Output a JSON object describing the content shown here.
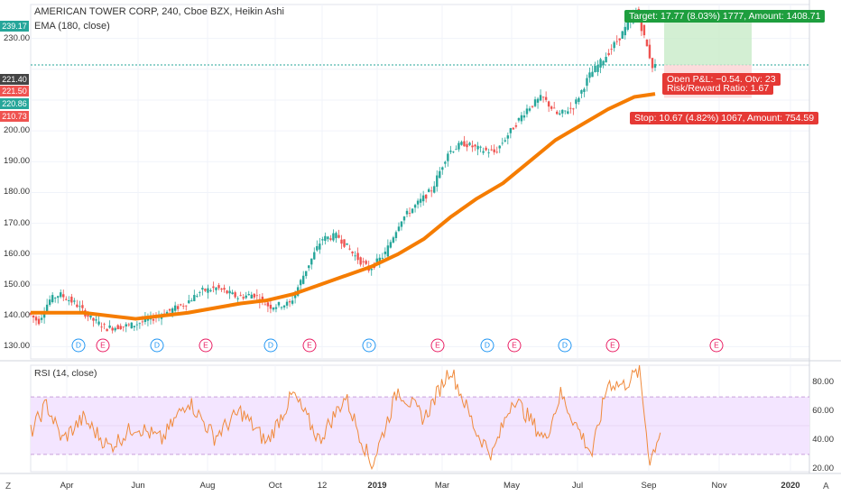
{
  "header": {
    "title": "AMERICAN TOWER CORP, 240, Cboe BZX, Heikin Ashi",
    "ema_label": "EMA (180, close)",
    "rsi_label": "RSI (14, close)"
  },
  "price_axis": {
    "labels": [
      "230.00",
      "200.00",
      "190.00",
      "180.00",
      "170.00",
      "160.00",
      "150.00",
      "140.00",
      "130.00"
    ],
    "tags": [
      {
        "text": "239.17",
        "color": "#26a69a"
      },
      {
        "text": "221.40",
        "color": "#444444"
      },
      {
        "text": "221.50",
        "color": "#ef5350"
      },
      {
        "text": "220.86",
        "color": "#26a69a"
      },
      {
        "text": "210.73",
        "color": "#ef5350"
      }
    ]
  },
  "rsi_axis": {
    "labels": [
      "80.00",
      "60.00",
      "40.00",
      "20.00"
    ]
  },
  "time_axis": {
    "labels": [
      "Apr",
      "Jun",
      "Aug",
      "Oct",
      "12",
      "2019",
      "Mar",
      "May",
      "Jul",
      "Sep",
      "Nov",
      "2020"
    ]
  },
  "position": {
    "target_text": "Target: 17.77 (8.03%) 1777, Amount: 1408.71",
    "pnl_text": "Open P&L: −0.54, Qty: 23",
    "rr_text": "Risk/Reward Ratio: 1.67",
    "stop_text": "Stop: 10.67 (4.82%) 1067, Amount: 754.59"
  },
  "events": [
    "D",
    "E",
    "D",
    "E",
    "D",
    "E",
    "D",
    "E",
    "D",
    "E",
    "D",
    "E",
    "E"
  ],
  "corner": {
    "left": "Z",
    "right": "A"
  },
  "colors": {
    "ema": "#f57c00",
    "rsi": "#f08a3c",
    "up": "#26a69a",
    "down": "#ef5350",
    "rsi_band": "#f3e5ff"
  },
  "chart_data": {
    "type": "candlestick",
    "title": "AMERICAN TOWER CORP, 240, Cboe BZX, Heikin Ashi",
    "ylim": [
      126,
      241
    ],
    "x": [
      "Apr",
      "Jun",
      "Aug",
      "Oct",
      "12",
      "2019",
      "Mar",
      "May",
      "Jul",
      "Sep",
      "Nov",
      "2020"
    ],
    "price_path": [
      [
        0,
        141
      ],
      [
        0.02,
        138
      ],
      [
        0.04,
        145
      ],
      [
        0.06,
        147
      ],
      [
        0.09,
        144
      ],
      [
        0.12,
        139
      ],
      [
        0.15,
        136
      ],
      [
        0.2,
        137
      ],
      [
        0.25,
        140
      ],
      [
        0.3,
        144
      ],
      [
        0.33,
        148
      ],
      [
        0.36,
        149
      ],
      [
        0.4,
        146
      ],
      [
        0.43,
        147
      ],
      [
        0.46,
        143
      ],
      [
        0.5,
        144
      ],
      [
        0.53,
        155
      ],
      [
        0.56,
        165
      ],
      [
        0.59,
        166
      ],
      [
        0.62,
        160
      ],
      [
        0.65,
        155
      ],
      [
        0.68,
        160
      ],
      [
        0.71,
        171
      ],
      [
        0.74,
        176
      ],
      [
        0.77,
        181
      ],
      [
        0.8,
        193
      ],
      [
        0.83,
        196
      ],
      [
        0.86,
        194
      ],
      [
        0.89,
        193
      ],
      [
        0.92,
        200
      ],
      [
        0.95,
        207
      ],
      [
        0.98,
        211
      ],
      [
        1.01,
        205
      ],
      [
        1.04,
        208
      ],
      [
        1.07,
        218
      ],
      [
        1.1,
        224
      ],
      [
        1.13,
        231
      ],
      [
        1.16,
        239
      ],
      [
        1.19,
        221
      ]
    ],
    "series": [
      {
        "name": "EMA (180, close)",
        "path": [
          [
            0,
            141
          ],
          [
            0.1,
            141
          ],
          [
            0.2,
            139
          ],
          [
            0.3,
            141
          ],
          [
            0.4,
            144
          ],
          [
            0.45,
            145
          ],
          [
            0.5,
            147
          ],
          [
            0.55,
            150
          ],
          [
            0.6,
            153
          ],
          [
            0.65,
            156
          ],
          [
            0.7,
            160
          ],
          [
            0.75,
            165
          ],
          [
            0.8,
            172
          ],
          [
            0.85,
            178
          ],
          [
            0.9,
            183
          ],
          [
            0.95,
            190
          ],
          [
            1,
            197
          ],
          [
            1.05,
            202
          ],
          [
            1.1,
            207
          ],
          [
            1.15,
            211
          ],
          [
            1.19,
            212
          ]
        ]
      },
      {
        "name": "RSI (14, close)",
        "ylim": [
          18,
          92
        ],
        "levels": [
          70,
          30
        ]
      }
    ],
    "position": {
      "entry": 221.4,
      "target": 239.17,
      "stop": 210.73
    },
    "rsi_path": [
      [
        0,
        45
      ],
      [
        0.03,
        65
      ],
      [
        0.06,
        40
      ],
      [
        0.1,
        55
      ],
      [
        0.15,
        35
      ],
      [
        0.2,
        50
      ],
      [
        0.25,
        40
      ],
      [
        0.3,
        68
      ],
      [
        0.35,
        42
      ],
      [
        0.4,
        60
      ],
      [
        0.45,
        38
      ],
      [
        0.5,
        72
      ],
      [
        0.55,
        40
      ],
      [
        0.6,
        70
      ],
      [
        0.65,
        22
      ],
      [
        0.7,
        75
      ],
      [
        0.75,
        55
      ],
      [
        0.8,
        90
      ],
      [
        0.85,
        45
      ],
      [
        0.88,
        30
      ],
      [
        0.92,
        70
      ],
      [
        0.95,
        55
      ],
      [
        0.98,
        40
      ],
      [
        1.01,
        72
      ],
      [
        1.04,
        50
      ],
      [
        1.07,
        30
      ],
      [
        1.1,
        80
      ],
      [
        1.13,
        78
      ],
      [
        1.16,
        88
      ],
      [
        1.18,
        25
      ],
      [
        1.2,
        47
      ]
    ]
  }
}
